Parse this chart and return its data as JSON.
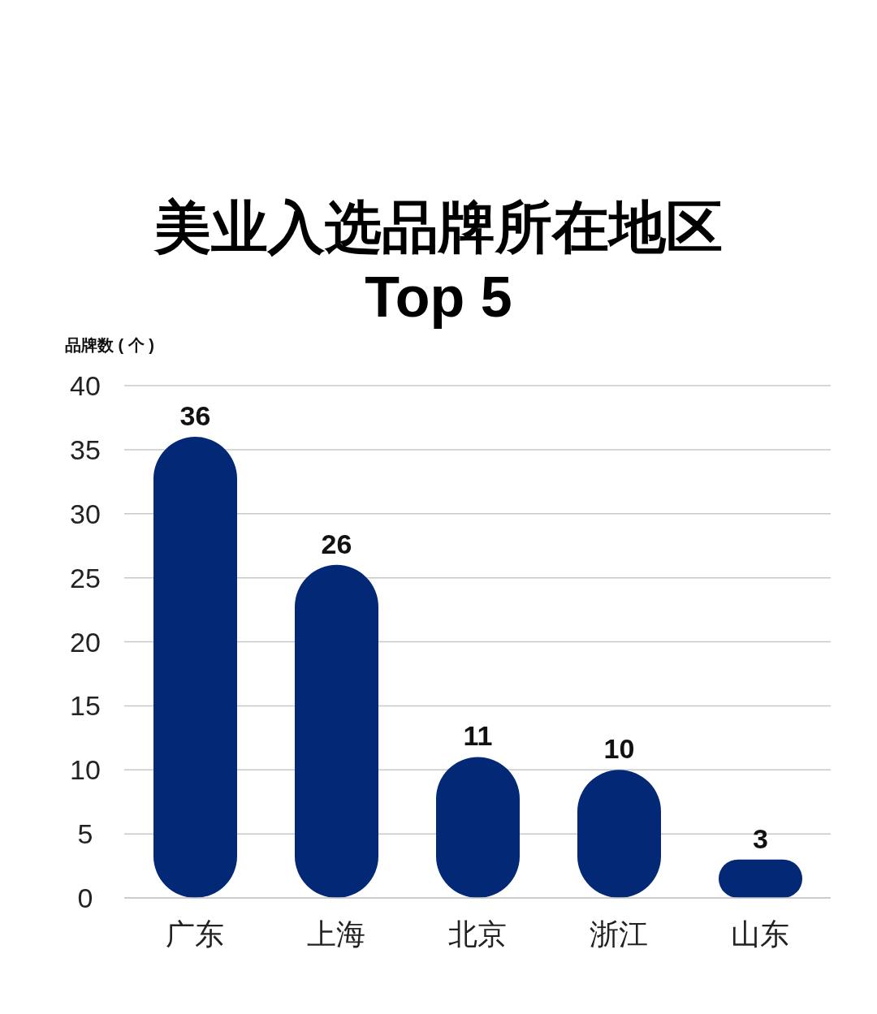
{
  "chart_data": {
    "type": "bar",
    "title": "美业入选品牌所在地区\nTop 5",
    "ylabel": "品牌数 ( 个 )",
    "categories": [
      "广东",
      "上海",
      "北京",
      "浙江",
      "山东"
    ],
    "values": [
      36,
      26,
      11,
      10,
      3
    ],
    "color": "#032876",
    "ylim": [
      0,
      40
    ],
    "yticks": [
      0,
      5,
      10,
      15,
      20,
      25,
      30,
      35,
      40
    ],
    "grid": "y",
    "data_labels": true
  }
}
